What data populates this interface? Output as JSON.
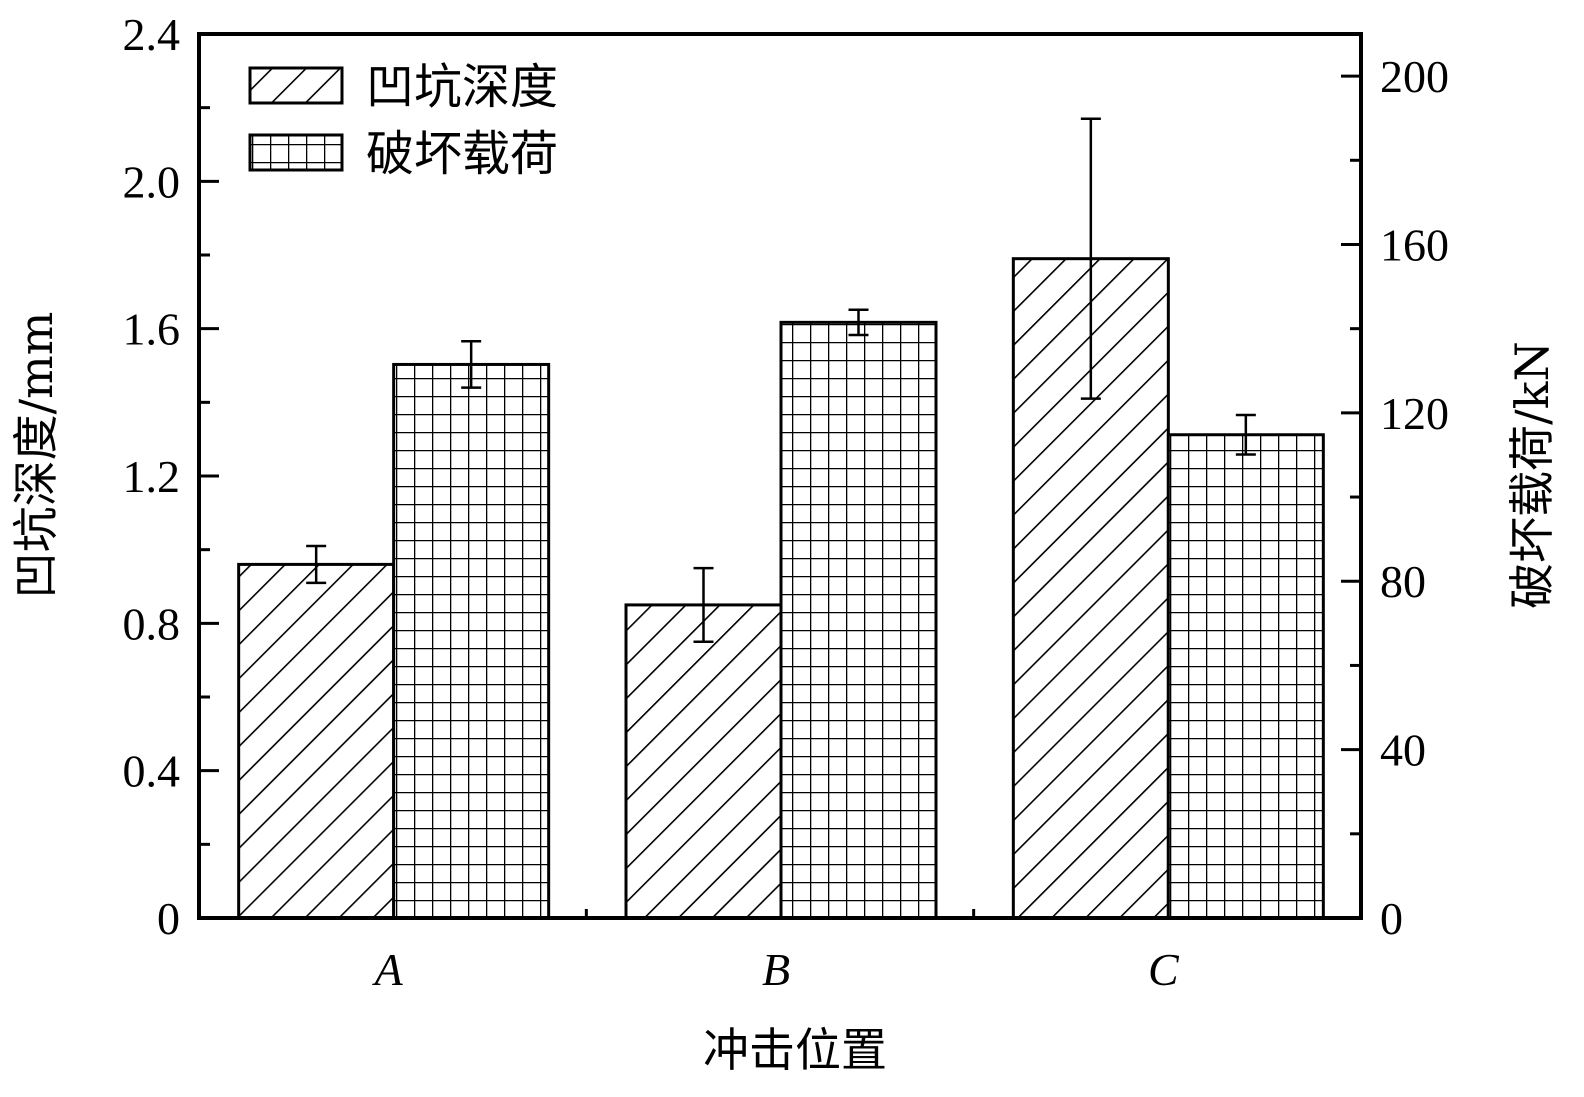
{
  "chart_data": {
    "type": "bar",
    "title": "",
    "categories": [
      "A",
      "B",
      "C"
    ],
    "xlabel": "冲击位置",
    "ylabel": "凹坑深度/mm",
    "y2label": "破坏载荷/kN",
    "ylim": [
      0,
      2.4
    ],
    "y2lim": [
      0,
      210
    ],
    "yticks": [
      "0",
      "0.4",
      "0.8",
      "1.2",
      "1.6",
      "2.0",
      "2.4"
    ],
    "y2ticks": [
      "0",
      "40",
      "80",
      "120",
      "160",
      "200"
    ],
    "grid": false,
    "legend_position": "upper left",
    "series": [
      {
        "name": "凹坑深度",
        "axis": "left",
        "pattern": "diagonal-hatch",
        "values": [
          0.96,
          0.85,
          1.79
        ],
        "errors": [
          0.05,
          0.1,
          0.38
        ]
      },
      {
        "name": "破坏载荷",
        "axis": "right",
        "pattern": "grid-hatch",
        "values": [
          131.5,
          141.5,
          114.8
        ],
        "errors": [
          5.5,
          3.0,
          4.7
        ]
      }
    ]
  },
  "legend": {
    "items": [
      {
        "label": "凹坑深度",
        "pattern": "diagonal-hatch"
      },
      {
        "label": "破坏载荷",
        "pattern": "grid-hatch"
      }
    ]
  },
  "axes": {
    "left_title": "凹坑深度/mm",
    "right_title": "破坏载荷/kN",
    "x_title": "冲击位置"
  },
  "colors": {
    "ink": "#000000",
    "background": "#ffffff"
  }
}
